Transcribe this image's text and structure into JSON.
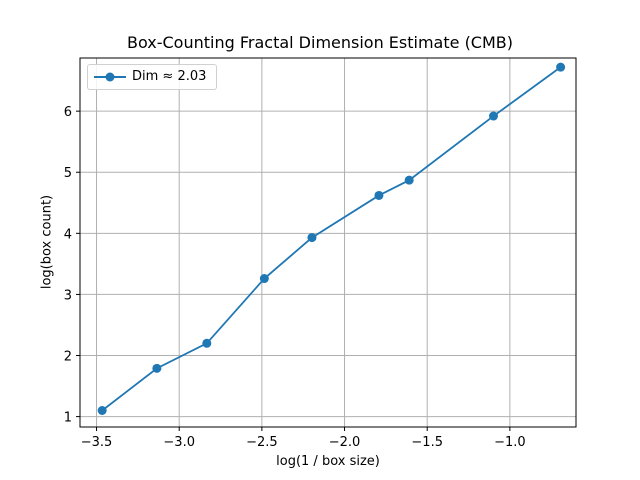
{
  "chart_data": {
    "type": "line",
    "title": "Box-Counting Fractal Dimension Estimate (CMB)",
    "xlabel": "log(1 / box size)",
    "ylabel": "log(box count)",
    "xlim": [
      -3.6,
      -0.6
    ],
    "ylim": [
      0.83,
      6.87
    ],
    "grid": true,
    "legend_position": "upper left",
    "x_ticks": [
      -3.5,
      -3.0,
      -2.5,
      -2.0,
      -1.5,
      -1.0
    ],
    "x_tick_labels": [
      "−3.5",
      "−3.0",
      "−2.5",
      "−2.0",
      "−1.5",
      "−1.0"
    ],
    "y_ticks": [
      1,
      2,
      3,
      4,
      5,
      6
    ],
    "y_tick_labels": [
      "1",
      "2",
      "3",
      "4",
      "5",
      "6"
    ],
    "series": [
      {
        "name": "Dim ≈ 2.03",
        "color": "#1f77b4",
        "marker": "circle",
        "x": [
          -3.466,
          -3.135,
          -2.833,
          -2.485,
          -2.197,
          -1.792,
          -1.609,
          -1.099,
          -0.693
        ],
        "y": [
          1.1,
          1.79,
          2.2,
          3.26,
          3.93,
          4.62,
          4.87,
          5.92,
          6.72
        ]
      }
    ]
  },
  "legend": {
    "label": "Dim ≈ 2.03"
  }
}
